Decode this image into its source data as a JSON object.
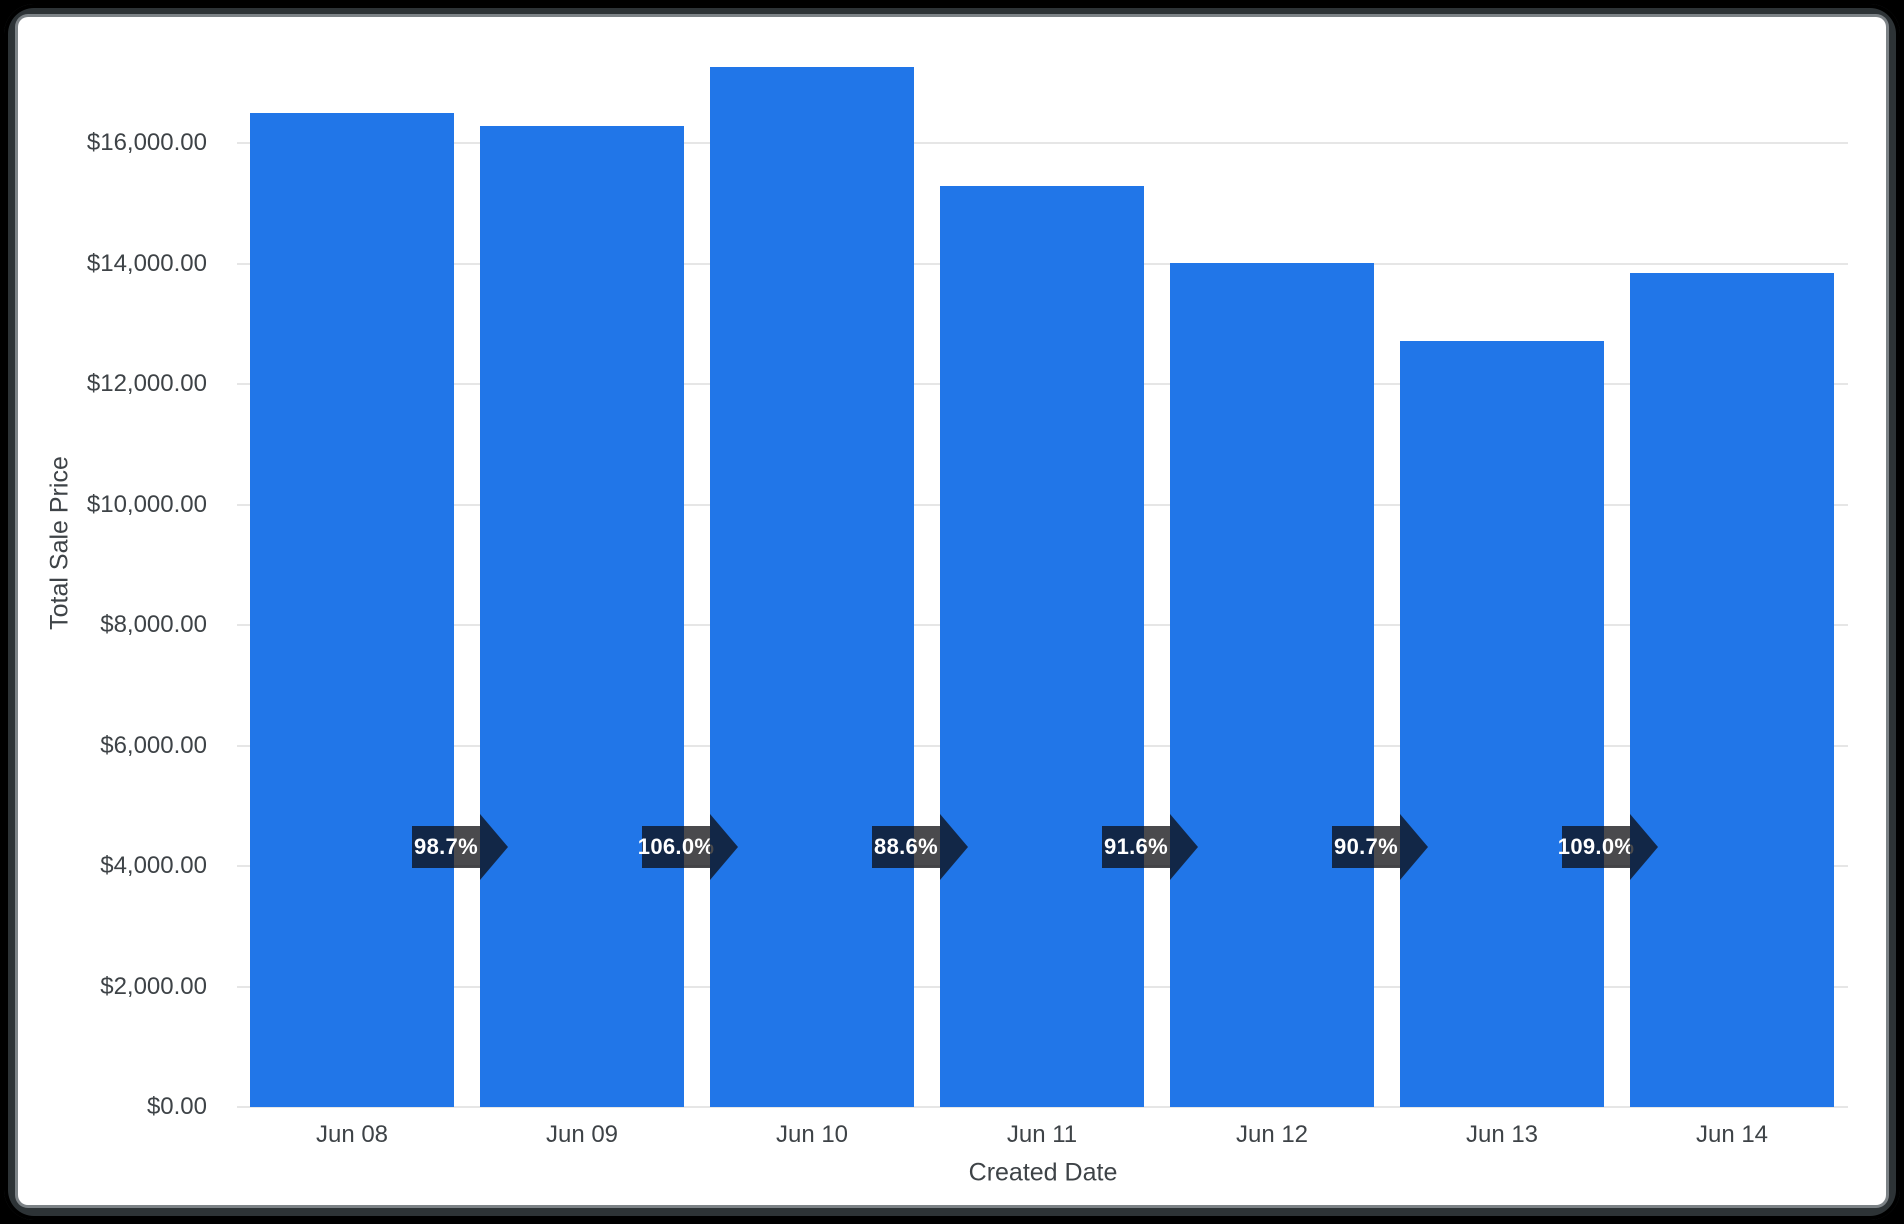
{
  "frame": {
    "outer_background": "#000000",
    "bezel_color": "#2d3336",
    "bezel_highlight": "#7c8286",
    "card_background": "#ffffff"
  },
  "chart_data": {
    "type": "bar",
    "title": "",
    "xlabel": "Created Date",
    "ylabel": "Total Sale Price",
    "categories": [
      "Jun 08",
      "Jun 09",
      "Jun 10",
      "Jun 11",
      "Jun 12",
      "Jun 13",
      "Jun 14"
    ],
    "values": [
      16500,
      16290,
      17260,
      15290,
      14010,
      12710,
      13850
    ],
    "bar_color": "#2176e8",
    "grid": true,
    "legend_position": "none",
    "y_axis": {
      "min": 0,
      "max": 16000,
      "tick_step": 2000,
      "tick_labels": [
        "$0.00",
        "$2,000.00",
        "$4,000.00",
        "$6,000.00",
        "$8,000.00",
        "$10,000.00",
        "$12,000.00",
        "$14,000.00",
        "$16,000.00"
      ],
      "tick_values": [
        0,
        2000,
        4000,
        6000,
        8000,
        10000,
        12000,
        14000,
        16000
      ],
      "grid_color": "#e6e6e6",
      "label_color": "#3e4347"
    },
    "pct_change_badges": {
      "labels": [
        "98.7%",
        "106.0%",
        "88.6%",
        "91.6%",
        "90.7%",
        "109.0%"
      ],
      "background": "rgba(13,14,17,0.75)",
      "text_color": "#ffffff"
    }
  }
}
